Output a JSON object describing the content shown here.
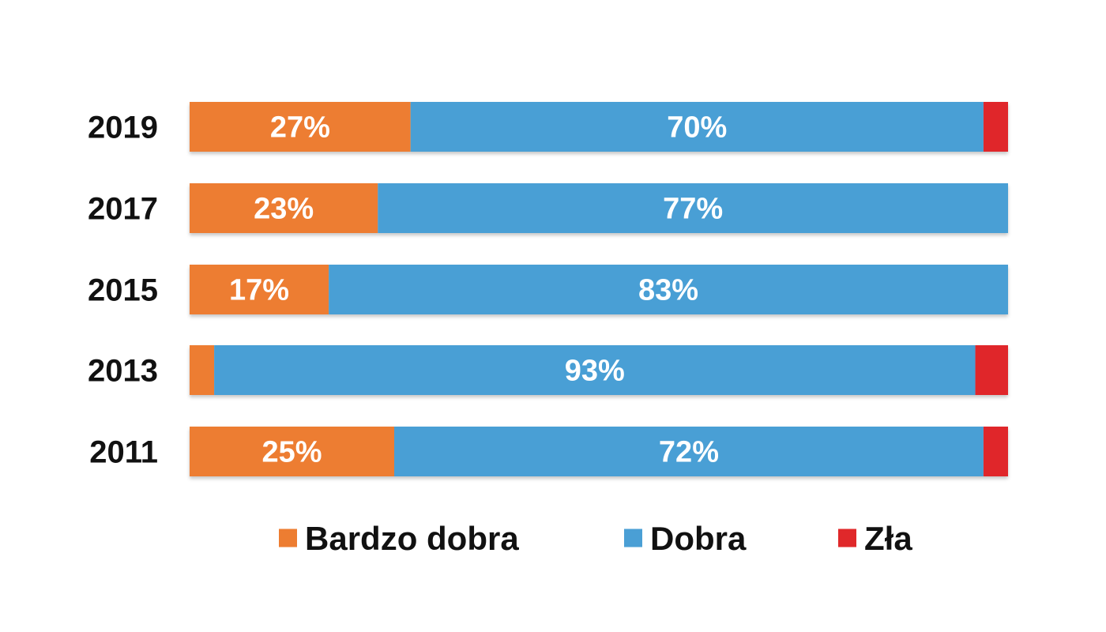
{
  "chart_data": {
    "type": "bar",
    "orientation": "horizontal",
    "stacked": true,
    "percent": true,
    "categories": [
      "2019",
      "2017",
      "2015",
      "2013",
      "2011"
    ],
    "series": [
      {
        "name": "Bardzo dobra",
        "color": "#ED7D31",
        "values": [
          27,
          23,
          17,
          3,
          25
        ],
        "labels": [
          "27%",
          "23%",
          "17%",
          "",
          "25%"
        ]
      },
      {
        "name": "Dobra",
        "color": "#4A9FD5",
        "values": [
          70,
          77,
          83,
          93,
          72
        ],
        "labels": [
          "70%",
          "77%",
          "83%",
          "93%",
          "72%"
        ]
      },
      {
        "name": "Zła",
        "color": "#E0282A",
        "values": [
          3,
          0,
          0,
          4,
          3
        ],
        "labels": [
          "",
          "",
          "",
          "",
          ""
        ]
      }
    ],
    "xlim": [
      0,
      100
    ],
    "title": "",
    "xlabel": "",
    "ylabel": "",
    "grid": false,
    "legend_position": "bottom"
  }
}
